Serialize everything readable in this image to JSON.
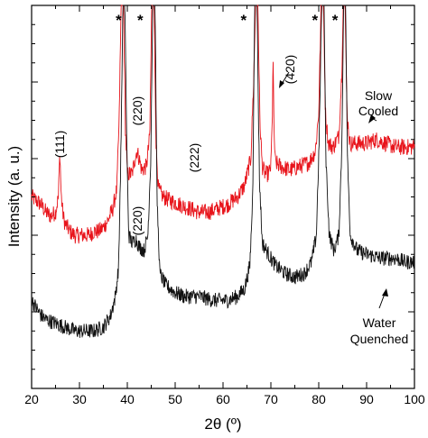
{
  "chart_data": {
    "type": "line",
    "title": "",
    "xlabel": "2θ (º)",
    "ylabel": "Intensity (a. u.)",
    "xlim": [
      20,
      100
    ],
    "ylim": [
      0,
      100
    ],
    "x_ticks": [
      20,
      30,
      40,
      50,
      60,
      70,
      80,
      90,
      100
    ],
    "x_tick_labels": [
      "20",
      "30",
      "40",
      "50",
      "60",
      "70",
      "80",
      "90",
      "100"
    ],
    "y_tick_labels_shown": false,
    "series": [
      {
        "name": "Slow Cooled",
        "color": "#e8141b",
        "baseline": 47,
        "noise": 2.2,
        "points": [
          [
            20,
            50
          ],
          [
            21,
            49
          ],
          [
            22,
            48
          ],
          [
            23,
            46
          ],
          [
            24,
            45
          ],
          [
            25,
            46
          ],
          [
            25.6,
            50
          ],
          [
            25.9,
            62
          ],
          [
            26.2,
            50
          ],
          [
            26.6,
            45
          ],
          [
            27,
            43
          ],
          [
            28,
            41
          ],
          [
            29,
            40
          ],
          [
            30,
            40
          ],
          [
            31,
            40
          ],
          [
            32,
            40
          ],
          [
            33,
            41
          ],
          [
            34,
            41
          ],
          [
            35,
            42
          ],
          [
            36,
            44
          ],
          [
            37,
            47
          ],
          [
            37.8,
            52
          ],
          [
            38.3,
            70
          ],
          [
            38.7,
            100
          ],
          [
            39.2,
            100
          ],
          [
            39.6,
            68
          ],
          [
            40,
            56
          ],
          [
            41,
            56
          ],
          [
            41.6,
            60
          ],
          [
            42,
            62
          ],
          [
            42.5,
            60
          ],
          [
            43,
            57
          ],
          [
            44,
            58
          ],
          [
            44.7,
            66
          ],
          [
            45.1,
            100
          ],
          [
            45.6,
            100
          ],
          [
            46,
            64
          ],
          [
            46.5,
            52
          ],
          [
            47.5,
            50
          ],
          [
            49,
            49
          ],
          [
            51,
            48
          ],
          [
            53,
            47
          ],
          [
            55,
            46
          ],
          [
            57,
            46
          ],
          [
            59,
            47
          ],
          [
            61,
            48
          ],
          [
            63,
            50
          ],
          [
            64.5,
            53
          ],
          [
            65.8,
            60
          ],
          [
            66.4,
            80
          ],
          [
            66.8,
            100
          ],
          [
            67.3,
            100
          ],
          [
            67.7,
            70
          ],
          [
            68.2,
            58
          ],
          [
            68.8,
            56
          ],
          [
            69.5,
            56
          ],
          [
            70,
            58
          ],
          [
            70.3,
            70
          ],
          [
            70.45,
            88
          ],
          [
            70.6,
            70
          ],
          [
            70.9,
            59
          ],
          [
            72,
            58
          ],
          [
            74,
            57
          ],
          [
            76,
            58
          ],
          [
            78,
            59
          ],
          [
            79.3,
            62
          ],
          [
            80,
            72
          ],
          [
            80.5,
            100
          ],
          [
            81,
            100
          ],
          [
            81.4,
            72
          ],
          [
            82,
            64
          ],
          [
            83,
            63
          ],
          [
            84.2,
            66
          ],
          [
            84.8,
            82
          ],
          [
            85.1,
            100
          ],
          [
            85.5,
            100
          ],
          [
            85.9,
            72
          ],
          [
            86.5,
            64
          ],
          [
            88,
            64
          ],
          [
            90,
            64
          ],
          [
            92,
            65
          ],
          [
            94,
            64
          ],
          [
            96,
            63
          ],
          [
            98,
            63
          ],
          [
            100,
            63
          ]
        ]
      },
      {
        "name": "Water Quenched",
        "color": "#111111",
        "baseline": 13,
        "noise": 2.0,
        "points": [
          [
            20,
            23
          ],
          [
            21,
            21
          ],
          [
            22,
            19
          ],
          [
            23,
            18
          ],
          [
            25,
            17
          ],
          [
            27,
            16
          ],
          [
            29,
            15
          ],
          [
            31,
            15
          ],
          [
            33,
            15
          ],
          [
            35,
            16
          ],
          [
            36.5,
            19
          ],
          [
            37.5,
            24
          ],
          [
            38.2,
            32
          ],
          [
            38.7,
            65
          ],
          [
            39.1,
            100
          ],
          [
            39.5,
            100
          ],
          [
            39.9,
            62
          ],
          [
            40.3,
            40
          ],
          [
            41,
            38
          ],
          [
            41.8,
            39
          ],
          [
            42.5,
            37
          ],
          [
            43.5,
            36
          ],
          [
            44.3,
            40
          ],
          [
            44.9,
            60
          ],
          [
            45.3,
            100
          ],
          [
            45.8,
            100
          ],
          [
            46.2,
            50
          ],
          [
            46.8,
            30
          ],
          [
            48,
            27
          ],
          [
            50,
            25
          ],
          [
            52,
            24
          ],
          [
            55,
            24
          ],
          [
            58,
            23
          ],
          [
            61,
            23
          ],
          [
            63,
            24
          ],
          [
            64.5,
            26
          ],
          [
            65.6,
            32
          ],
          [
            66.2,
            50
          ],
          [
            66.6,
            100
          ],
          [
            67.1,
            100
          ],
          [
            67.6,
            55
          ],
          [
            68.2,
            38
          ],
          [
            69.5,
            35
          ],
          [
            71,
            32
          ],
          [
            73,
            30
          ],
          [
            75,
            29
          ],
          [
            77,
            30
          ],
          [
            78.5,
            33
          ],
          [
            79.5,
            40
          ],
          [
            80.1,
            65
          ],
          [
            80.6,
            100
          ],
          [
            81.1,
            100
          ],
          [
            81.5,
            60
          ],
          [
            82.2,
            40
          ],
          [
            83.2,
            36
          ],
          [
            84.2,
            40
          ],
          [
            84.8,
            62
          ],
          [
            85.2,
            100
          ],
          [
            85.6,
            100
          ],
          [
            86,
            60
          ],
          [
            86.6,
            40
          ],
          [
            88,
            36
          ],
          [
            90,
            35
          ],
          [
            93,
            34
          ],
          [
            96,
            34
          ],
          [
            98,
            33
          ],
          [
            100,
            33
          ]
        ]
      }
    ],
    "annotations": {
      "peak_111": "(111)",
      "peak_220_upper": "(220)",
      "peak_222": "(222)",
      "peak_420": "(420)",
      "peak_220_lower": "(220)",
      "label_slow_line1": "Slow",
      "label_slow_line2": "Cooled",
      "label_water_line1": "Water",
      "label_water_line2": "Quenched",
      "star": "*"
    },
    "star_positions_x": [
      38.2,
      42.7,
      64.3,
      79.2,
      83.4
    ],
    "grid": false,
    "legend": "none"
  }
}
